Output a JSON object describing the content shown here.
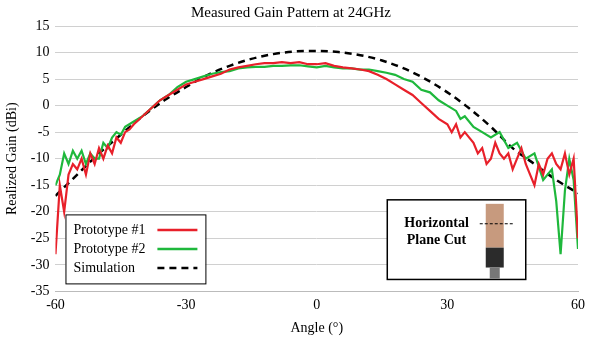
{
  "chart_data": {
    "type": "line",
    "title": "Measured Gain Pattern at 24GHz",
    "x_label": "Angle (°)",
    "y_label": "Realized Gain (dBi)",
    "xlim": [
      -60,
      60
    ],
    "xticks": [
      -60,
      -30,
      0,
      30,
      60
    ],
    "ylim": [
      -35,
      15
    ],
    "yticks": [
      -35,
      -30,
      -25,
      -20,
      -15,
      -10,
      -5,
      0,
      5,
      10,
      15
    ],
    "grid": true,
    "legend": "lower left",
    "annotations": [
      {
        "text": "Horizontal Plane Cut"
      }
    ],
    "series": [
      {
        "name": "Prototype #1",
        "color": "#e8202a",
        "line_style": "solid",
        "x": [
          -60,
          -59,
          -58,
          -57,
          -56,
          -55,
          -54,
          -53,
          -52,
          -51,
          -50,
          -49,
          -48,
          -47,
          -46,
          -45,
          -44,
          -43,
          -42,
          -40,
          -38,
          -36,
          -34,
          -32,
          -30,
          -28,
          -26,
          -24,
          -22,
          -20,
          -18,
          -16,
          -14,
          -12,
          -10,
          -8,
          -6,
          -4,
          -2,
          0,
          2,
          4,
          6,
          8,
          10,
          12,
          14,
          16,
          18,
          20,
          22,
          24,
          26,
          28,
          30,
          31,
          32,
          33,
          34,
          36,
          37,
          38,
          39,
          40,
          41,
          42,
          43,
          44,
          45,
          46,
          47,
          48,
          49,
          50,
          51,
          52,
          53,
          54,
          55,
          56,
          57,
          58,
          59,
          60
        ],
        "values": [
          -28,
          -15,
          -20,
          -13,
          -11,
          -12,
          -10,
          -13,
          -9,
          -11,
          -8,
          -10,
          -7.5,
          -9,
          -6,
          -7,
          -5,
          -4.5,
          -3.5,
          -2,
          -0.5,
          1,
          2,
          3,
          4,
          4.5,
          5,
          5.5,
          6,
          6.8,
          7.2,
          7.5,
          7.8,
          8,
          8,
          8.2,
          8,
          8.2,
          7.8,
          7.8,
          8,
          7.5,
          7.2,
          7,
          6.8,
          6.5,
          5.8,
          5,
          4,
          3,
          2,
          0.5,
          -1,
          -2.5,
          -3.5,
          -5,
          -3.5,
          -6,
          -5,
          -7,
          -9,
          -8,
          -11,
          -10,
          -7,
          -9,
          -10,
          -9,
          -12,
          -10,
          -8,
          -11,
          -13,
          -15,
          -11,
          -13,
          -10,
          -9,
          -11,
          -12,
          -9,
          -13,
          -10,
          -25
        ]
      },
      {
        "name": "Prototype #2",
        "color": "#1fb83c",
        "line_style": "solid",
        "x": [
          -60,
          -59,
          -58,
          -57,
          -56,
          -55,
          -54,
          -53,
          -52,
          -51,
          -50,
          -49,
          -48,
          -47,
          -46,
          -45,
          -44,
          -42,
          -40,
          -38,
          -36,
          -34,
          -32,
          -30,
          -28,
          -26,
          -24,
          -22,
          -20,
          -18,
          -16,
          -14,
          -12,
          -10,
          -8,
          -6,
          -4,
          -2,
          0,
          2,
          4,
          6,
          8,
          10,
          12,
          14,
          16,
          18,
          20,
          22,
          24,
          26,
          28,
          30,
          32,
          33,
          34,
          36,
          38,
          40,
          42,
          44,
          46,
          48,
          50,
          52,
          54,
          55,
          56,
          57,
          58,
          59,
          60
        ],
        "values": [
          -15,
          -13,
          -9,
          -11,
          -8.5,
          -10,
          -8.5,
          -11,
          -9,
          -10,
          -10,
          -7,
          -8,
          -6,
          -5,
          -5.5,
          -4,
          -3,
          -2,
          -0.5,
          1,
          2,
          3.5,
          4.5,
          5,
          5.5,
          6,
          6.3,
          6.5,
          7,
          7.2,
          7.3,
          7.3,
          7.5,
          7.5,
          7.6,
          7.6,
          7.4,
          7.2,
          7.5,
          7.2,
          7,
          7,
          6.8,
          6.8,
          6.5,
          6.2,
          5.8,
          5,
          4.5,
          3,
          2.5,
          1,
          0,
          -1,
          -2.5,
          -2,
          -4,
          -5,
          -6,
          -5,
          -8,
          -7,
          -10,
          -9,
          -14,
          -12,
          -18,
          -28,
          -16,
          -10,
          -14,
          -27
        ]
      },
      {
        "name": "Simulation",
        "color": "#000000",
        "line_style": "dashed",
        "x": [
          -60,
          -55,
          -50,
          -45,
          -40,
          -35,
          -30,
          -25,
          -20,
          -15,
          -10,
          -5,
          0,
          5,
          10,
          15,
          20,
          25,
          30,
          35,
          40,
          45,
          50,
          55,
          60
        ],
        "values": [
          -17,
          -13,
          -9,
          -5.5,
          -2,
          1,
          3.5,
          5.8,
          7.5,
          8.8,
          9.7,
          10.2,
          10.3,
          10.1,
          9.5,
          8.5,
          7,
          5,
          2.5,
          -0.5,
          -4,
          -8,
          -11,
          -14,
          -16.5
        ]
      }
    ]
  }
}
